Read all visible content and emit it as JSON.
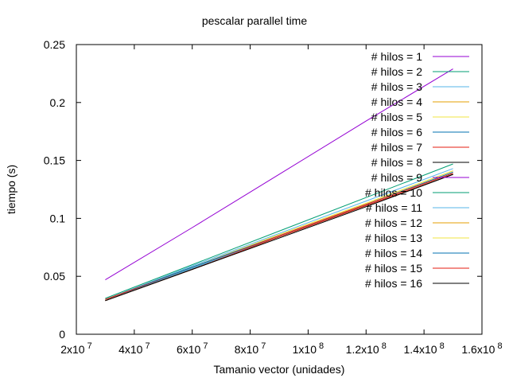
{
  "chart_data": {
    "type": "line",
    "title": "pescalar parallel time",
    "xlabel": "Tamanio vector (unidades)",
    "ylabel": "tiempo (s)",
    "xlim": [
      20000000,
      160000000
    ],
    "ylim": [
      0,
      0.25
    ],
    "x_ticks": [
      {
        "value": 20000000,
        "mant": "2x10",
        "exp": "7"
      },
      {
        "value": 40000000,
        "mant": "4x10",
        "exp": "7"
      },
      {
        "value": 60000000,
        "mant": "6x10",
        "exp": "7"
      },
      {
        "value": 80000000,
        "mant": "8x10",
        "exp": "7"
      },
      {
        "value": 100000000,
        "mant": "1x10",
        "exp": "8"
      },
      {
        "value": 120000000,
        "mant": "1.2x10",
        "exp": "8"
      },
      {
        "value": 140000000,
        "mant": "1.4x10",
        "exp": "8"
      },
      {
        "value": 160000000,
        "mant": "1.6x10",
        "exp": "8"
      }
    ],
    "y_ticks": [
      {
        "value": 0,
        "label": "0"
      },
      {
        "value": 0.05,
        "label": "0.05"
      },
      {
        "value": 0.1,
        "label": "0.1"
      },
      {
        "value": 0.15,
        "label": "0.15"
      },
      {
        "value": 0.2,
        "label": "0.2"
      },
      {
        "value": 0.25,
        "label": "0.25"
      }
    ],
    "grid": false,
    "legend_position": "top-right",
    "x": [
      30000000,
      60000000,
      90000000,
      120000000,
      150000000
    ],
    "series": [
      {
        "name": "# hilos = 1",
        "color": "#9400d3",
        "values": [
          0.047,
          0.092,
          0.138,
          0.184,
          0.229
        ]
      },
      {
        "name": "# hilos = 2",
        "color": "#009e73",
        "values": [
          0.031,
          0.06,
          0.089,
          0.118,
          0.147
        ]
      },
      {
        "name": "# hilos = 3",
        "color": "#56b4e9",
        "values": [
          0.03,
          0.059,
          0.087,
          0.115,
          0.143
        ]
      },
      {
        "name": "# hilos = 4",
        "color": "#e69f00",
        "values": [
          0.03,
          0.058,
          0.086,
          0.113,
          0.141
        ]
      },
      {
        "name": "# hilos = 5",
        "color": "#f0e442",
        "values": [
          0.03,
          0.058,
          0.086,
          0.113,
          0.141
        ]
      },
      {
        "name": "# hilos = 6",
        "color": "#0072b2",
        "values": [
          0.03,
          0.058,
          0.085,
          0.112,
          0.14
        ]
      },
      {
        "name": "# hilos = 7",
        "color": "#e51e10",
        "values": [
          0.03,
          0.057,
          0.085,
          0.112,
          0.139
        ]
      },
      {
        "name": "# hilos = 8",
        "color": "#000000",
        "values": [
          0.029,
          0.057,
          0.084,
          0.111,
          0.138
        ]
      },
      {
        "name": "# hilos = 9",
        "color": "#9400d3",
        "values": [
          0.029,
          0.057,
          0.084,
          0.111,
          0.138
        ]
      },
      {
        "name": "# hilos = 10",
        "color": "#009e73",
        "values": [
          0.029,
          0.057,
          0.084,
          0.111,
          0.138
        ]
      },
      {
        "name": "# hilos = 11",
        "color": "#56b4e9",
        "values": [
          0.029,
          0.057,
          0.084,
          0.111,
          0.138
        ]
      },
      {
        "name": "# hilos = 12",
        "color": "#e69f00",
        "values": [
          0.029,
          0.056,
          0.084,
          0.111,
          0.138
        ]
      },
      {
        "name": "# hilos = 13",
        "color": "#f0e442",
        "values": [
          0.029,
          0.056,
          0.084,
          0.111,
          0.138
        ]
      },
      {
        "name": "# hilos = 14",
        "color": "#0072b2",
        "values": [
          0.029,
          0.056,
          0.084,
          0.111,
          0.138
        ]
      },
      {
        "name": "# hilos = 15",
        "color": "#e51e10",
        "values": [
          0.029,
          0.056,
          0.084,
          0.111,
          0.138
        ]
      },
      {
        "name": "# hilos = 16",
        "color": "#000000",
        "values": [
          0.029,
          0.056,
          0.083,
          0.11,
          0.138
        ]
      }
    ]
  }
}
